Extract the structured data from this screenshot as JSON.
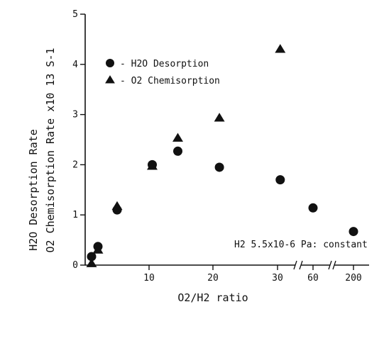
{
  "chart_data": {
    "type": "scatter",
    "title": "",
    "xlabel": "O2/H2 ratio",
    "ylabel_lines": [
      "H2O Desorption Rate",
      "O2 Chemisorption Rate x10 13 S-1"
    ],
    "ylim": [
      0,
      5
    ],
    "yticks": [
      "0",
      "1",
      "2",
      "3",
      "4",
      "5"
    ],
    "xticks": [
      "10",
      "20",
      "30",
      "60",
      "200"
    ],
    "x_axis_breaks": 2,
    "legend_position": "upper-left",
    "annotation": "H2 5.5x10-6 Pa: constant",
    "series": [
      {
        "name": "H2O Desorption",
        "marker": "circle",
        "color": "#111111",
        "points": [
          {
            "x": 1,
            "y": 0.17
          },
          {
            "x": 2,
            "y": 0.37
          },
          {
            "x": 5,
            "y": 1.1
          },
          {
            "x": 10.5,
            "y": 2.0
          },
          {
            "x": 14.5,
            "y": 2.27
          },
          {
            "x": 21,
            "y": 1.95
          },
          {
            "x": 31,
            "y": 1.7
          },
          {
            "x": 60,
            "y": 1.14
          },
          {
            "x": 200,
            "y": 0.67
          }
        ]
      },
      {
        "name": "O2 Chemisorption",
        "marker": "triangle",
        "color": "#111111",
        "points": [
          {
            "x": 1,
            "y": 0.03
          },
          {
            "x": 2,
            "y": 0.3
          },
          {
            "x": 5,
            "y": 1.17
          },
          {
            "x": 10.5,
            "y": 1.97
          },
          {
            "x": 14.5,
            "y": 2.53
          },
          {
            "x": 21,
            "y": 2.93
          },
          {
            "x": 31,
            "y": 4.3
          }
        ]
      }
    ]
  }
}
